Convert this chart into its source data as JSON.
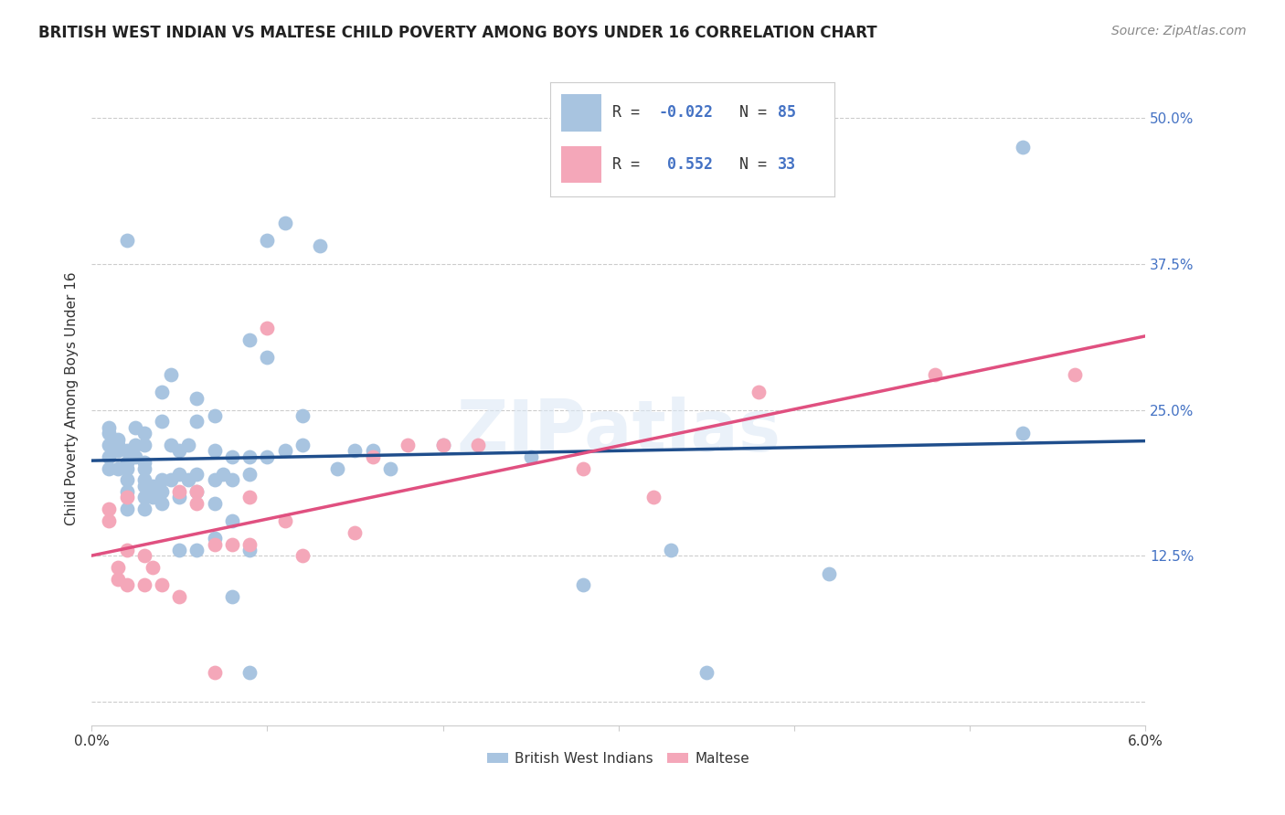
{
  "title": "BRITISH WEST INDIAN VS MALTESE CHILD POVERTY AMONG BOYS UNDER 16 CORRELATION CHART",
  "source": "Source: ZipAtlas.com",
  "ylabel": "Child Poverty Among Boys Under 16",
  "yticks": [
    0.0,
    0.125,
    0.25,
    0.375,
    0.5
  ],
  "ytick_labels": [
    "",
    "12.5%",
    "25.0%",
    "37.5%",
    "50.0%"
  ],
  "xlim": [
    0.0,
    0.06
  ],
  "ylim": [
    -0.02,
    0.54
  ],
  "blue_color": "#a8c4e0",
  "pink_color": "#f4a7b9",
  "line_blue": "#1f4e8c",
  "line_pink": "#e05080",
  "background_color": "#ffffff",
  "grid_color": "#cccccc",
  "watermark": "ZIPatlas",
  "bwi_x": [
    0.001,
    0.001,
    0.001,
    0.001,
    0.001,
    0.0015,
    0.0015,
    0.0015,
    0.0015,
    0.002,
    0.002,
    0.002,
    0.002,
    0.002,
    0.002,
    0.002,
    0.0025,
    0.0025,
    0.0025,
    0.003,
    0.003,
    0.003,
    0.003,
    0.003,
    0.003,
    0.003,
    0.003,
    0.0035,
    0.0035,
    0.004,
    0.004,
    0.004,
    0.004,
    0.004,
    0.0045,
    0.0045,
    0.0045,
    0.005,
    0.005,
    0.005,
    0.005,
    0.0055,
    0.0055,
    0.006,
    0.006,
    0.006,
    0.006,
    0.006,
    0.007,
    0.007,
    0.007,
    0.007,
    0.007,
    0.0075,
    0.008,
    0.008,
    0.008,
    0.008,
    0.009,
    0.009,
    0.009,
    0.009,
    0.009,
    0.01,
    0.01,
    0.01,
    0.011,
    0.011,
    0.012,
    0.012,
    0.013,
    0.014,
    0.015,
    0.016,
    0.017,
    0.02,
    0.025,
    0.028,
    0.033,
    0.035,
    0.042,
    0.053,
    0.053
  ],
  "bwi_y": [
    0.2,
    0.21,
    0.22,
    0.23,
    0.235,
    0.2,
    0.215,
    0.22,
    0.225,
    0.165,
    0.18,
    0.19,
    0.2,
    0.205,
    0.215,
    0.395,
    0.21,
    0.22,
    0.235,
    0.165,
    0.175,
    0.185,
    0.19,
    0.2,
    0.205,
    0.22,
    0.23,
    0.175,
    0.185,
    0.17,
    0.18,
    0.19,
    0.24,
    0.265,
    0.19,
    0.22,
    0.28,
    0.13,
    0.175,
    0.195,
    0.215,
    0.19,
    0.22,
    0.13,
    0.18,
    0.195,
    0.24,
    0.26,
    0.14,
    0.17,
    0.19,
    0.215,
    0.245,
    0.195,
    0.09,
    0.155,
    0.19,
    0.21,
    0.025,
    0.13,
    0.195,
    0.21,
    0.31,
    0.395,
    0.21,
    0.295,
    0.41,
    0.215,
    0.245,
    0.22,
    0.39,
    0.2,
    0.215,
    0.215,
    0.2,
    0.22,
    0.21,
    0.1,
    0.13,
    0.025,
    0.11,
    0.475,
    0.23
  ],
  "maltese_x": [
    0.001,
    0.001,
    0.0015,
    0.0015,
    0.002,
    0.002,
    0.002,
    0.003,
    0.003,
    0.0035,
    0.004,
    0.005,
    0.005,
    0.006,
    0.006,
    0.007,
    0.007,
    0.008,
    0.009,
    0.009,
    0.01,
    0.011,
    0.012,
    0.015,
    0.016,
    0.018,
    0.02,
    0.022,
    0.028,
    0.032,
    0.038,
    0.048,
    0.056
  ],
  "maltese_y": [
    0.155,
    0.165,
    0.105,
    0.115,
    0.1,
    0.13,
    0.175,
    0.1,
    0.125,
    0.115,
    0.1,
    0.09,
    0.18,
    0.17,
    0.18,
    0.025,
    0.135,
    0.135,
    0.135,
    0.175,
    0.32,
    0.155,
    0.125,
    0.145,
    0.21,
    0.22,
    0.22,
    0.22,
    0.2,
    0.175,
    0.265,
    0.28,
    0.28
  ]
}
